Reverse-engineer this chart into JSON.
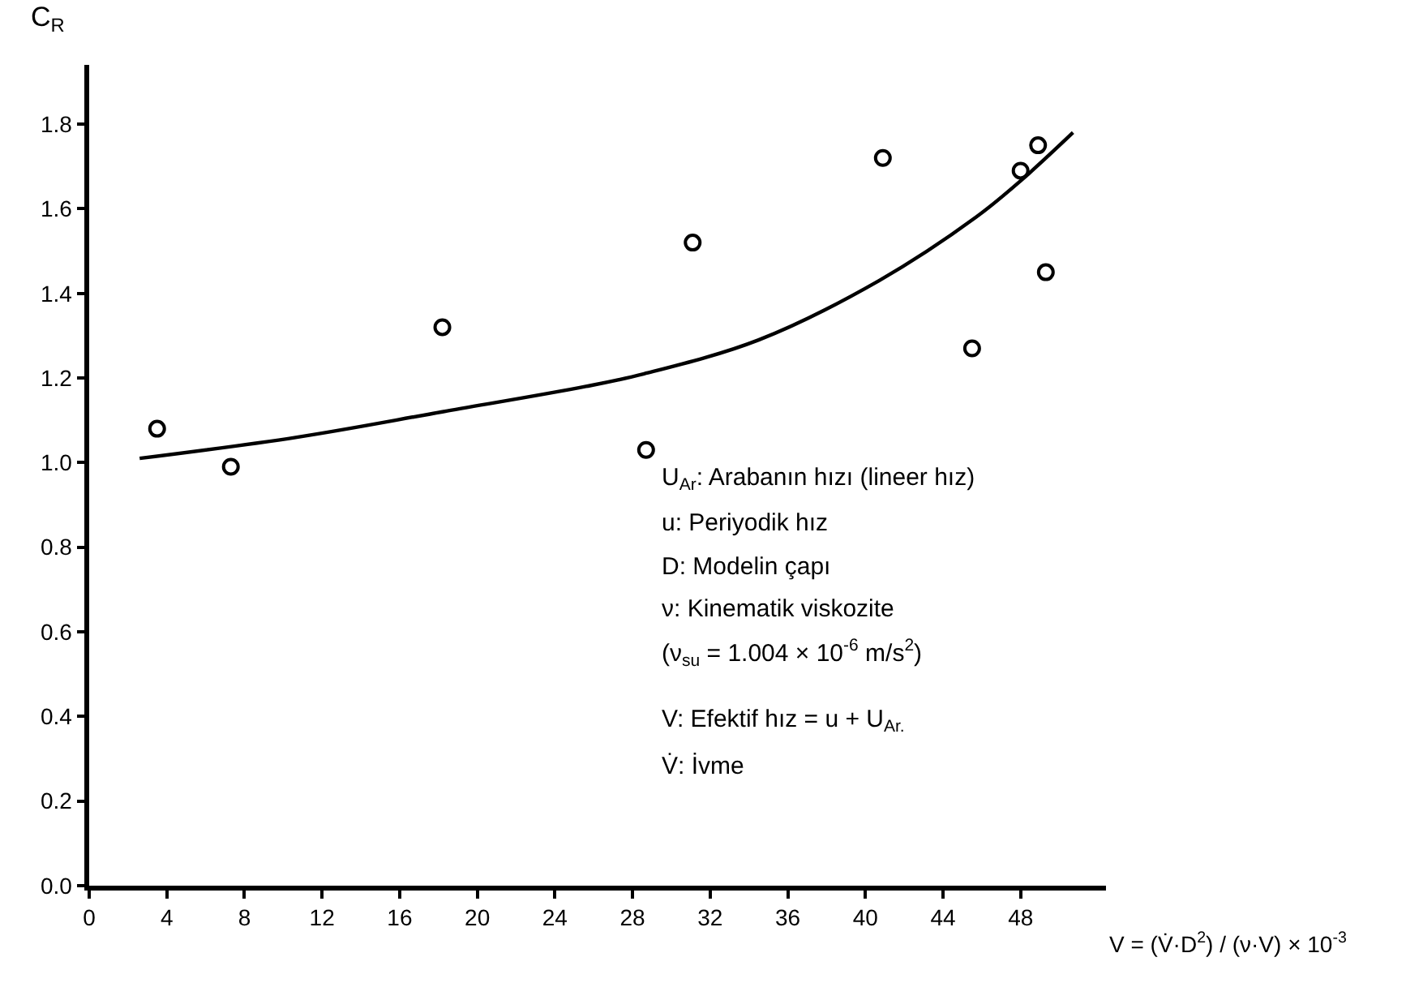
{
  "chart_data": {
    "type": "scatter",
    "ylabel": "C$_{R}$",
    "xlabel": "V = (V̇·D$^{2}$) / (ν·V) × 10$^{-3}$",
    "xlim": [
      0,
      52.4
    ],
    "ylim": [
      0,
      1.94
    ],
    "xticks": [
      0,
      4,
      8,
      12,
      16,
      20,
      24,
      28,
      32,
      36,
      40,
      44,
      48
    ],
    "yticks": [
      {
        "value": 0,
        "label": "0.0"
      },
      0.2,
      0.4,
      0.6,
      0.8,
      {
        "value": 1,
        "label": "1.0"
      },
      1.2,
      1.4,
      1.6,
      1.8
    ],
    "grid": false,
    "legend": false,
    "series": [
      {
        "marker": "circle",
        "color": "#000000",
        "x": [
          3.5,
          7.3,
          18.2,
          28.7,
          31.1,
          40.9,
          45.5,
          48.0,
          48.9,
          49.3
        ],
        "values": [
          1.08,
          0.99,
          1.32,
          1.03,
          1.52,
          1.72,
          1.27,
          1.69,
          1.75,
          1.45
        ]
      },
      {
        "type": "line",
        "color": "#000000",
        "x": [
          2.6,
          10.7,
          18.2,
          25.6,
          28.6,
          34.5,
          40.7,
          45.7,
          48.1,
          50.7
        ],
        "values": [
          1.01,
          1.06,
          1.12,
          1.18,
          1.21,
          1.29,
          1.43,
          1.58,
          1.67,
          1.78
        ]
      }
    ],
    "annotations": [
      "U$_{Ar}$: Arabanın hızı (lineer hız)",
      "u: Periyodik hız",
      "D: Modelin çapı",
      "ν: Kinematik viskozite",
      "(ν$_{su}$ = 1.004 × 10$^{-6}$ m/s$^{2}$)",
      "V: Efektif hız = u + U$_{Ar.}$",
      "V̇: İvme"
    ]
  }
}
